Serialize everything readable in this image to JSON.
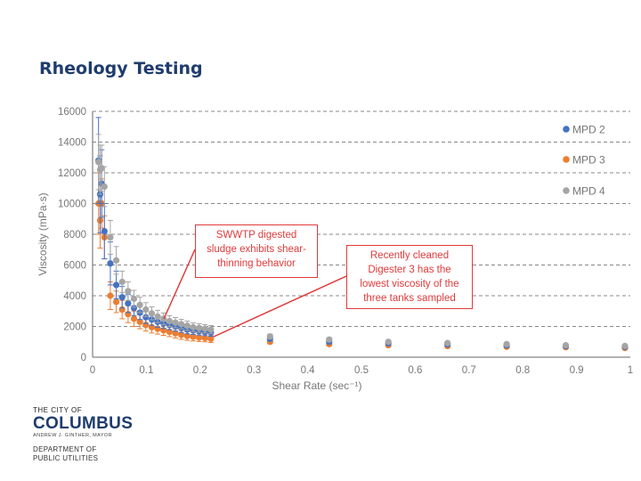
{
  "slide": {
    "title": "Rheology Testing"
  },
  "annotations": {
    "a1": "SWWTP digested sludge exhibits shear-thinning behavior",
    "a2": "Recently cleaned Digester 3 has the lowest viscosity of the three tanks sampled"
  },
  "logo": {
    "line1": "THE CITY OF",
    "line2": "COLUMBUS",
    "line3": "ANDREW J. GINTHER, MAYOR",
    "dept1": "DEPARTMENT OF",
    "dept2": "PUBLIC UTILITIES"
  },
  "colors": {
    "mpd2": "#4472c4",
    "mpd3": "#ed7d31",
    "mpd4": "#a5a5a5",
    "annotation": "#e03a3a",
    "title": "#1f3c6e"
  },
  "chart_data": {
    "type": "scatter",
    "xlabel": "Shear Rate (sec⁻¹)",
    "ylabel": "Viscosity (mPa·s)",
    "xlim": [
      0,
      1
    ],
    "ylim": [
      0,
      16000
    ],
    "xticks": [
      0,
      0.1,
      0.2,
      0.3,
      0.4,
      0.5,
      0.6,
      0.7,
      0.8,
      0.9,
      1
    ],
    "xtick_labels": [
      "0",
      "0.1",
      "0.2",
      "0.3",
      "0.4",
      "0.5",
      "0.6",
      "0.7",
      "0.8",
      "0.9",
      "1"
    ],
    "yticks": [
      0,
      2000,
      4000,
      6000,
      8000,
      10000,
      12000,
      14000,
      16000
    ],
    "ytick_labels": [
      "0",
      "2000",
      "4000",
      "6000",
      "8000",
      "10000",
      "12000",
      "14000",
      "16000"
    ],
    "grid": "horizontal-dashed",
    "legend_position": "right",
    "series": [
      {
        "name": "MPD 2",
        "x": [
          0.011,
          0.014,
          0.017,
          0.022,
          0.033,
          0.044,
          0.055,
          0.066,
          0.077,
          0.088,
          0.099,
          0.11,
          0.121,
          0.132,
          0.143,
          0.154,
          0.165,
          0.176,
          0.187,
          0.198,
          0.209,
          0.22,
          0.33,
          0.44,
          0.55,
          0.66,
          0.77,
          0.88,
          0.99
        ],
        "y": [
          12800,
          10600,
          11300,
          8200,
          6100,
          4700,
          3900,
          3500,
          3200,
          2900,
          2600,
          2450,
          2300,
          2200,
          2100,
          2000,
          1900,
          1800,
          1750,
          1700,
          1650,
          1600,
          1200,
          1000,
          900,
          830,
          770,
          720,
          680
        ],
        "err": [
          2800,
          2500,
          2200,
          1800,
          1400,
          900,
          700,
          600,
          500,
          450,
          400,
          380,
          350,
          330,
          310,
          300,
          290,
          280,
          270,
          260,
          250,
          240,
          150,
          120,
          110,
          100,
          90,
          80,
          80
        ]
      },
      {
        "name": "MPD 3",
        "x": [
          0.011,
          0.014,
          0.017,
          0.022,
          0.033,
          0.044,
          0.055,
          0.066,
          0.077,
          0.088,
          0.099,
          0.11,
          0.121,
          0.132,
          0.143,
          0.154,
          0.165,
          0.176,
          0.187,
          0.198,
          0.209,
          0.22,
          0.33,
          0.44,
          0.55,
          0.66,
          0.77,
          0.88,
          0.99
        ],
        "y": [
          10000,
          8900,
          10000,
          7800,
          4000,
          3600,
          3100,
          2800,
          2500,
          2300,
          2100,
          1950,
          1850,
          1750,
          1650,
          1550,
          1450,
          1380,
          1330,
          1280,
          1250,
          1200,
          1000,
          850,
          780,
          720,
          680,
          650,
          600
        ],
        "err": [
          2000,
          1800,
          1600,
          1400,
          900,
          700,
          600,
          550,
          500,
          450,
          400,
          380,
          350,
          330,
          310,
          300,
          290,
          280,
          270,
          260,
          250,
          240,
          130,
          100,
          90,
          80,
          70,
          60,
          60
        ]
      },
      {
        "name": "MPD 4",
        "x": [
          0.011,
          0.014,
          0.017,
          0.022,
          0.033,
          0.044,
          0.055,
          0.066,
          0.077,
          0.088,
          0.099,
          0.11,
          0.121,
          0.132,
          0.143,
          0.154,
          0.165,
          0.176,
          0.187,
          0.198,
          0.209,
          0.22,
          0.33,
          0.44,
          0.55,
          0.66,
          0.77,
          0.88,
          0.99
        ],
        "y": [
          12700,
          12200,
          12300,
          11100,
          7800,
          6300,
          4900,
          4300,
          3800,
          3400,
          3100,
          2850,
          2650,
          2500,
          2350,
          2250,
          2150,
          2050,
          1950,
          1900,
          1850,
          1800,
          1350,
          1150,
          1000,
          920,
          850,
          780,
          730
        ],
        "err": [
          1800,
          1600,
          1500,
          1300,
          1100,
          900,
          700,
          600,
          550,
          500,
          450,
          420,
          400,
          380,
          350,
          330,
          310,
          300,
          290,
          280,
          270,
          260,
          160,
          130,
          110,
          100,
          90,
          80,
          80
        ]
      }
    ]
  }
}
